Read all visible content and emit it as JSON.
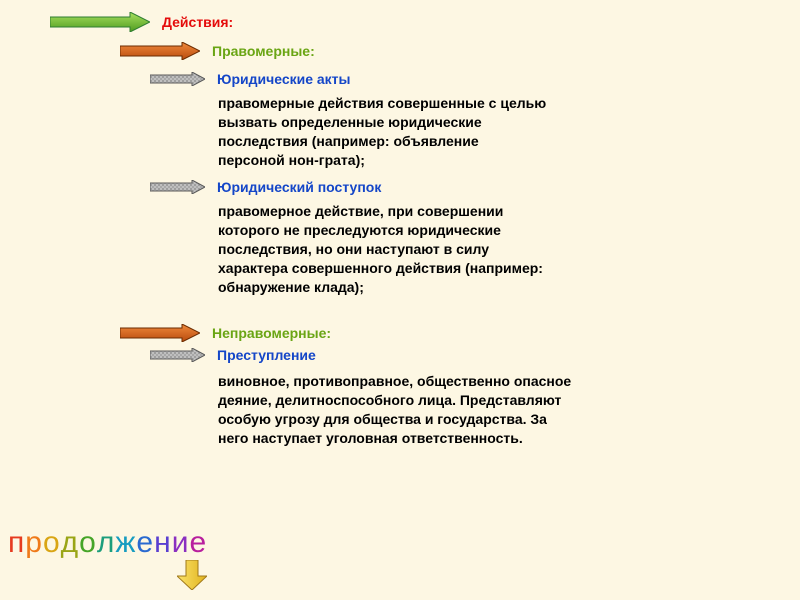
{
  "background_color": "#fdf7e3",
  "arrows": {
    "large": {
      "green": {
        "fill": "#7bc043",
        "stroke": "#2e7d32",
        "width": 100,
        "height": 20
      },
      "orange": {
        "fill": "#d9641c",
        "stroke": "#6b2b00",
        "width": 80,
        "height": 18
      }
    },
    "small": {
      "gray": {
        "fill": "#b5b5b5",
        "stroke": "#5a5a5a",
        "width": 55,
        "height": 14,
        "noise": true
      }
    },
    "down": {
      "yellow": {
        "fill": "#f4d032",
        "stroke": "#a0781a",
        "width": 26,
        "height": 26
      }
    }
  },
  "colors": {
    "red": "#e40b0b",
    "green_text": "#6aa514",
    "blue": "#1446c8",
    "black": "#000000"
  },
  "sections": {
    "actions": {
      "label": "Действия:"
    },
    "lawful": {
      "label": "Правомерные:"
    },
    "legal_acts": {
      "label": "Юридические акты",
      "body": "правомерные действия совершенные с целью вызвать определенные юридические последствия (например: объявление персоной нон-грата);"
    },
    "legal_deed": {
      "label": "Юридический поступок",
      "body": "правомерное действие, при совершении которого не преследуются юридические последствия, но они наступают в силу характера совершенного действия (например: обнаружение клада);"
    },
    "unlawful": {
      "label": "Неправомерные:"
    },
    "crime": {
      "label": "Преступление",
      "body": "виновное, противоправное, общественно опасное деяние, делитноспособного лица. Представляют особую угрозу для общества и государства. За него наступает уголовная ответственность."
    }
  },
  "footer_word": {
    "letters": [
      "п",
      "р",
      "о",
      "д",
      "о",
      "л",
      "ж",
      "е",
      "н",
      "и",
      "е"
    ],
    "colors": [
      "#e63b1f",
      "#ef7a1a",
      "#d9a514",
      "#9aa516",
      "#46a528",
      "#1d9e7c",
      "#179cc0",
      "#2a6ad0",
      "#5a3fd0",
      "#8a2fc0",
      "#b81f9e"
    ]
  }
}
